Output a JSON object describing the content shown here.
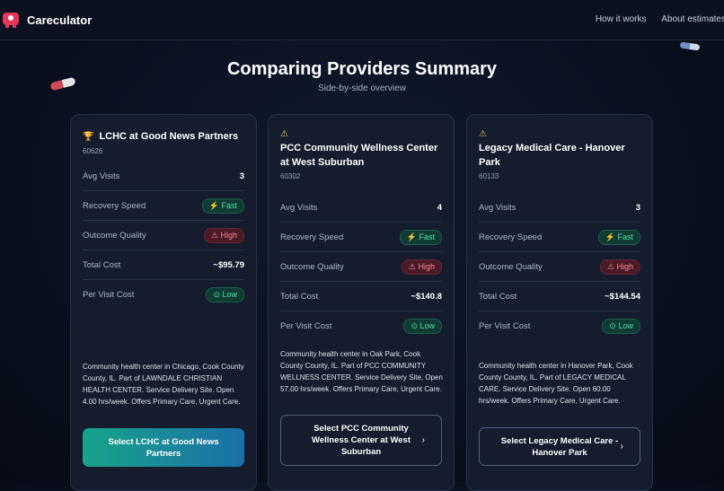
{
  "app": {
    "name": "Careculator"
  },
  "nav": [
    "How it works",
    "About estimates"
  ],
  "page": {
    "title": "Comparing Providers Summary",
    "subtitle": "Side-by-side overview"
  },
  "labels": {
    "avg_visits": "Avg Visits",
    "recovery": "Recovery Speed",
    "outcome": "Outcome Quality",
    "total": "Total Cost",
    "per_visit": "Per Visit Cost"
  },
  "cards": [
    {
      "icon": "trophy-icon",
      "name_lines": [
        "LCHC at Good News Partners"
      ],
      "zip": "60626",
      "avg_visits": "3",
      "recovery": "⚡ Fast",
      "outcome": "⚠ High",
      "total": "~$95.79",
      "per_visit": "⊙ Low",
      "description": "Community health center in Chicago, Cook County County, IL. Part of LAWNDALE CHRISTIAN HEALTH CENTER. Service Delivery Site. Open 4.00 hrs/week. Offers Primary Care, Urgent Care.",
      "button": "Select LCHC at Good News Partners"
    },
    {
      "icon": "warning-icon",
      "name_lines": [
        "PCC Community Wellness Center",
        "at West Suburban"
      ],
      "zip": "60302",
      "avg_visits": "4",
      "recovery": "⚡ Fast",
      "outcome": "⚠ High",
      "total": "~$140.8",
      "per_visit": "⊙ Low",
      "description": "Community health center in Oak Park, Cook County County, IL. Part of PCC COMMUNITY WELLNESS CENTER. Service Delivery Site. Open 57.00 hrs/week. Offers Primary Care, Urgent Care.",
      "button": "Select PCC Community Wellness Center at West Suburban"
    },
    {
      "icon": "warning-icon",
      "name_lines": [
        "Legacy Medical Care - Hanover",
        "Park"
      ],
      "zip": "60133",
      "avg_visits": "3",
      "recovery": "⚡ Fast",
      "outcome": "⚠ High",
      "total": "~$144.54",
      "per_visit": "⊙ Low",
      "description": "Community health center in Hanover Park, Cook County County, IL. Part of LEGACY MEDICAL CARE. Service Delivery Site. Open 60.00 hrs/week. Offers Primary Care, Urgent Care.",
      "button": "Select Legacy Medical Care - Hanover Park"
    }
  ],
  "icons": {
    "trophy": "🏆",
    "warning": "⚠",
    "chevron": "›"
  },
  "colors": {
    "accent_start": "#19a38a",
    "accent_end": "#1a6fa8",
    "logo": "#e8355a"
  }
}
